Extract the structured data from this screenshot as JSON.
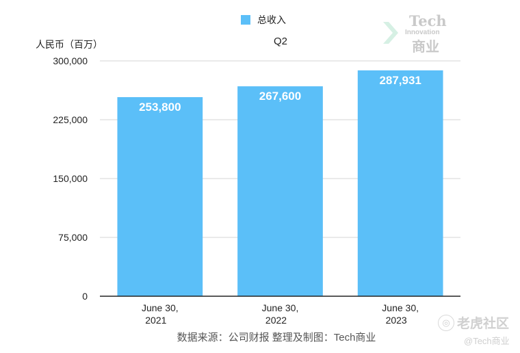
{
  "chart_data": {
    "type": "bar",
    "title": "Q2",
    "ylabel": "人民币（百万）",
    "xlabel": "",
    "categories": [
      [
        "June 30,",
        "2021"
      ],
      [
        "June 30,",
        "2022"
      ],
      [
        "June 30,",
        "2023"
      ]
    ],
    "series": [
      {
        "name": "总收入",
        "values": [
          253800,
          267600,
          287931
        ],
        "labels": [
          "253,800",
          "267,600",
          "287,931"
        ]
      }
    ],
    "ylim": [
      0,
      300000
    ],
    "yticks": [
      0,
      75000,
      150000,
      225000,
      300000
    ],
    "ytick_labels": [
      "0",
      "75,000",
      "150,000",
      "225,000",
      "300,000"
    ],
    "grid": true,
    "legend_position": "top-center",
    "bar_color": "#5bbff8"
  },
  "source": "数据来源：公司财报 整理及制图：Tech商业",
  "logo": {
    "name": "Tech",
    "sub": "Innovation",
    "cn": "商业",
    "icon": "chevron-logo-icon"
  },
  "watermark": {
    "icon": "tiger-icon",
    "name": "老虎社区",
    "handle": "@Tech商业"
  }
}
